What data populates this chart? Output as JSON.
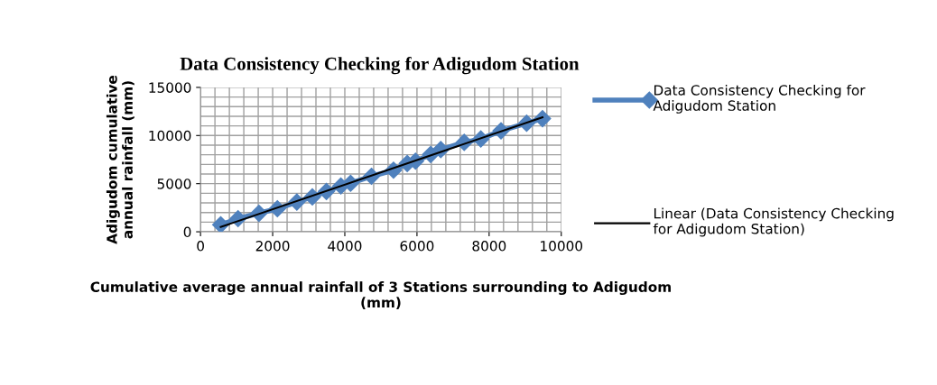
{
  "chart_data": {
    "type": "line",
    "title": "Data Consistency Checking for Adigudom Station",
    "xlabel": "Cumulative average annual rainfall of 3 Stations surrounding to Adigudom (mm)",
    "ylabel": "Adigudom cumulative annual rainfall (mm)",
    "series": [
      {
        "name": "Data Consistency Checking for Adigudom Station",
        "color": "#4f81bd",
        "marker": "diamond",
        "x": [
          560,
          1040,
          1620,
          2130,
          2670,
          3100,
          3490,
          3890,
          4160,
          4740,
          5350,
          5730,
          5960,
          6380,
          6660,
          7310,
          7770,
          8330,
          9040,
          9480
        ],
        "values": [
          730,
          1360,
          1920,
          2390,
          3090,
          3620,
          4190,
          4760,
          5040,
          5770,
          6400,
          7090,
          7340,
          8030,
          8540,
          9290,
          9640,
          10490,
          11280,
          11750
        ]
      },
      {
        "name": "Linear (Data Consistency Checking for Adigudom Station)",
        "color": "#000000",
        "marker": "none",
        "x": [
          560,
          9480
        ],
        "values": [
          500,
          11900
        ]
      }
    ],
    "xlim": [
      0,
      10000
    ],
    "xticks": [
      0,
      2000,
      4000,
      6000,
      8000,
      10000
    ],
    "ylim": [
      0,
      15000
    ],
    "yticks": [
      0,
      5000,
      10000,
      15000
    ],
    "grid": true,
    "legend": "right"
  }
}
